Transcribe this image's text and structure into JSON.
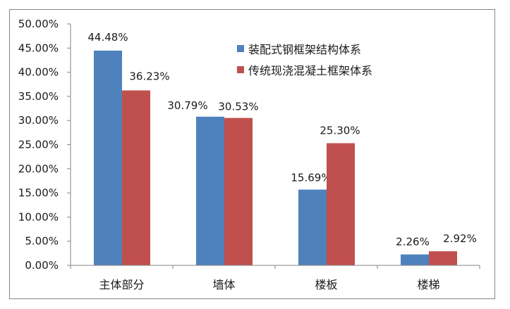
{
  "chart_data": {
    "type": "bar",
    "title": "",
    "xlabel": "",
    "ylabel": "",
    "categories": [
      "主体部分",
      "墙体",
      "楼板",
      "楼梯"
    ],
    "series": [
      {
        "name": "装配式钢框架结构体系",
        "color": "#4F81BD",
        "values": [
          44.48,
          30.79,
          15.69,
          2.26
        ],
        "labels": [
          "44.48%",
          "30.79%",
          "15.69%",
          "2.26%"
        ]
      },
      {
        "name": "传统现浇混凝土框架体系",
        "color": "#C0504D",
        "values": [
          36.23,
          30.53,
          25.3,
          2.92
        ],
        "labels": [
          "36.23%",
          "30.53%",
          "25.30%",
          "2.92%"
        ]
      }
    ],
    "ylim": [
      0,
      50
    ],
    "ytick_step": 5,
    "ytick_labels": [
      "0.00%",
      "5.00%",
      "10.00%",
      "15.00%",
      "20.00%",
      "25.00%",
      "30.00%",
      "35.00%",
      "40.00%",
      "45.00%",
      "50.00%"
    ],
    "grid": false,
    "legend_position": "top-right-inside"
  },
  "legend": {
    "items": [
      {
        "label": "装配式钢框架结构体系",
        "color": "#4F81BD"
      },
      {
        "label": "传统现浇混凝土框架体系",
        "color": "#C0504D"
      }
    ]
  }
}
